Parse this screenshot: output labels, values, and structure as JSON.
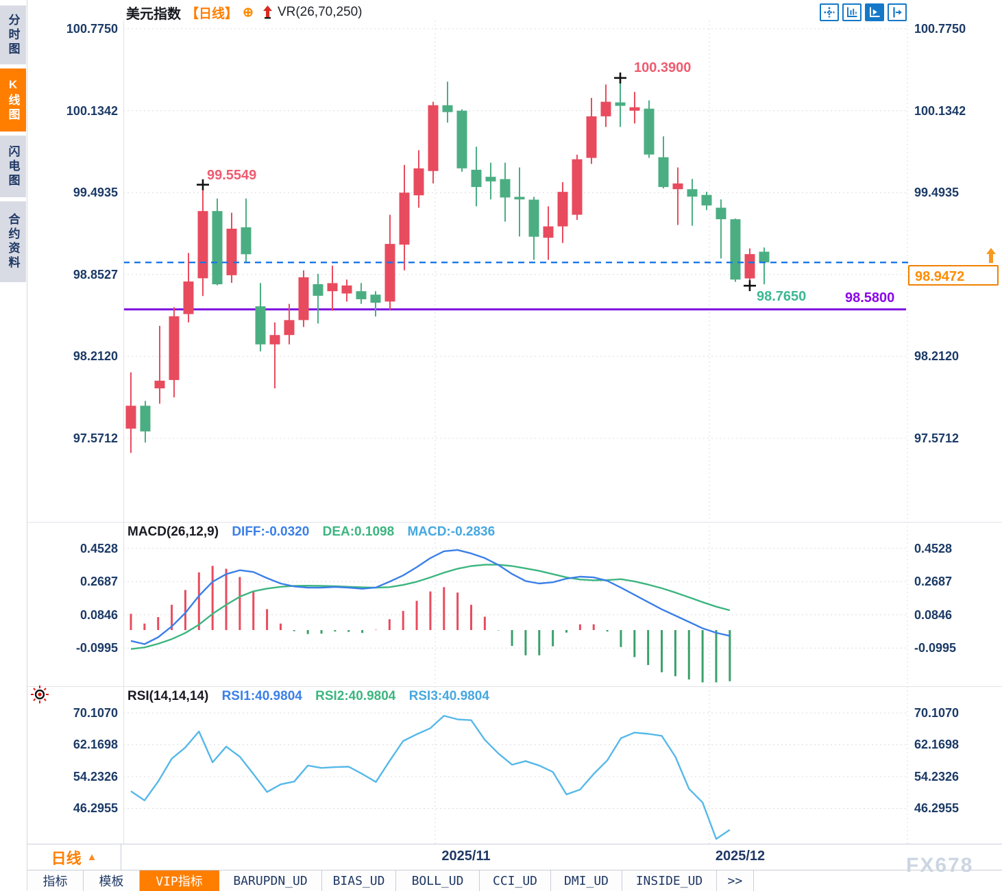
{
  "app": {
    "sidebar": [
      {
        "label": "分时图",
        "active": false
      },
      {
        "label": "K线图",
        "active": true
      },
      {
        "label": "闪电图",
        "active": false
      },
      {
        "label": "合约资料",
        "active": false
      }
    ],
    "title": {
      "symbol": "美元指数",
      "period": "【日线】",
      "oplus_icon": "⊕",
      "overlay_indicator": "VR(26,70,250)"
    },
    "toolbar_icons": [
      "move-crosshair-icon",
      "axis-scale-icon",
      "axis-play-icon",
      "pan-right-icon"
    ],
    "footer": {
      "period_button": "日线",
      "period_arrow": "▲",
      "tabs": [
        {
          "label": "指标",
          "active": false
        },
        {
          "label": "模板",
          "active": false
        },
        {
          "label": "VIP指标",
          "active": true
        },
        {
          "label": "BARUPDN_UD",
          "active": false
        },
        {
          "label": "BIAS_UD",
          "active": false
        },
        {
          "label": "BOLL_UD",
          "active": false
        },
        {
          "label": "CCI_UD",
          "active": false
        },
        {
          "label": "DMI_UD",
          "active": false
        },
        {
          "label": "INSIDE_UD",
          "active": false
        },
        {
          "label": ">>",
          "active": false
        }
      ],
      "watermark": "FX678"
    }
  },
  "indicators": {
    "macd_header": {
      "name": "MACD(26,12,9)",
      "diff": "DIFF:-0.0320",
      "dea": "DEA:0.1098",
      "macd": "MACD:-0.2836"
    },
    "rsi_header": {
      "name": "RSI(14,14,14)",
      "rsi1": "RSI1:40.9804",
      "rsi2": "RSI2:40.9804",
      "rsi3": "RSI3:40.9804"
    }
  },
  "annotations": {
    "swing_high_1": "99.5549",
    "swing_high_2": "100.3900",
    "swing_low": "98.7650",
    "support_line": "98.5800",
    "last_price": "98.9472"
  },
  "colors": {
    "up_candle": "#e84b5e",
    "down_candle": "#4bae82",
    "diff_line": "#3a7fe8",
    "dea_line": "#3cb57f",
    "rsi_line": "#55b8e8",
    "current_price_line": "#1877e8",
    "support_line": "#7c10e0",
    "accent_orange": "#ff7e00",
    "pink_label": "#ef5b70",
    "green_label": "#3cb892",
    "purple_label": "#8a06e8",
    "axis_text": "#1b3a66"
  },
  "chart_data": {
    "type": "candlestick",
    "symbol": "美元指数",
    "period": "日线",
    "price_axis_ticks": [
      100.775,
      100.1342,
      99.4935,
      98.8527,
      98.212,
      97.5712
    ],
    "candles_ohlc": [
      [
        97.647,
        98.087,
        97.457,
        97.826
      ],
      [
        97.826,
        97.864,
        97.538,
        97.625
      ],
      [
        97.962,
        98.451,
        97.842,
        98.022
      ],
      [
        98.027,
        98.597,
        97.891,
        98.526
      ],
      [
        98.543,
        99.021,
        98.478,
        98.798
      ],
      [
        98.823,
        99.5549,
        98.684,
        99.349
      ],
      [
        99.349,
        99.447,
        98.768,
        98.776
      ],
      [
        98.847,
        99.336,
        98.787,
        99.211
      ],
      [
        99.222,
        99.447,
        98.951,
        99.011
      ],
      [
        98.604,
        98.786,
        98.251,
        98.306
      ],
      [
        98.306,
        98.478,
        97.962,
        98.379
      ],
      [
        98.379,
        98.623,
        98.306,
        98.496
      ],
      [
        98.496,
        98.885,
        98.442,
        98.831
      ],
      [
        98.777,
        98.858,
        98.469,
        98.686
      ],
      [
        98.722,
        98.922,
        98.569,
        98.785
      ],
      [
        98.704,
        98.813,
        98.641,
        98.767
      ],
      [
        98.722,
        98.786,
        98.623,
        98.659
      ],
      [
        98.695,
        98.722,
        98.524,
        98.632
      ],
      [
        98.641,
        99.32,
        98.576,
        99.092
      ],
      [
        99.086,
        99.71,
        98.885,
        99.493
      ],
      [
        99.472,
        99.825,
        99.375,
        99.683
      ],
      [
        99.662,
        100.204,
        99.565,
        100.177
      ],
      [
        100.177,
        100.361,
        100.041,
        100.123
      ],
      [
        100.134,
        100.145,
        99.656,
        99.683
      ],
      [
        99.672,
        99.852,
        99.386,
        99.537
      ],
      [
        99.617,
        99.727,
        99.44,
        99.581
      ],
      [
        99.599,
        99.727,
        99.266,
        99.455
      ],
      [
        99.46,
        99.69,
        99.15,
        99.44
      ],
      [
        99.438,
        99.46,
        98.967,
        99.148
      ],
      [
        99.14,
        99.386,
        98.967,
        99.229
      ],
      [
        99.229,
        99.575,
        99.099,
        99.499
      ],
      [
        99.32,
        99.79,
        99.28,
        99.754
      ],
      [
        99.765,
        100.234,
        99.718,
        100.09
      ],
      [
        100.09,
        100.339,
        100.007,
        100.204
      ],
      [
        100.199,
        100.39,
        100.007,
        100.172
      ],
      [
        100.134,
        100.281,
        100.034,
        100.161
      ],
      [
        100.15,
        100.215,
        99.765,
        99.791
      ],
      [
        99.77,
        99.933,
        99.526,
        99.537
      ],
      [
        99.52,
        99.69,
        99.24,
        99.565
      ],
      [
        99.52,
        99.6,
        99.234,
        99.462
      ],
      [
        99.475,
        99.5,
        99.357,
        99.393
      ],
      [
        99.375,
        99.44,
        98.978,
        99.285
      ],
      [
        99.285,
        99.29,
        98.795,
        98.813
      ],
      [
        98.822,
        99.057,
        98.765,
        99.012
      ],
      [
        99.031,
        99.064,
        98.776,
        98.9472
      ]
    ],
    "current_price": 98.9472,
    "support_level": 98.58,
    "swing_high_1": 99.5549,
    "swing_high_1_index": 5,
    "swing_high_2": 100.39,
    "swing_high_2_index": 34,
    "swing_low": 98.765,
    "swing_low_index": 43,
    "macd": {
      "params": "26,12,9",
      "axis_ticks": [
        0.4528,
        0.2687,
        0.0846,
        -0.0995
      ],
      "diff": [
        -0.06,
        -0.078,
        -0.04,
        0.02,
        0.095,
        0.19,
        0.268,
        0.31,
        0.332,
        0.322,
        0.288,
        0.258,
        0.242,
        0.235,
        0.235,
        0.239,
        0.235,
        0.229,
        0.236,
        0.268,
        0.303,
        0.349,
        0.399,
        0.437,
        0.444,
        0.425,
        0.399,
        0.361,
        0.311,
        0.272,
        0.258,
        0.265,
        0.285,
        0.296,
        0.292,
        0.273,
        0.235,
        0.195,
        0.155,
        0.115,
        0.08,
        0.045,
        0.01,
        -0.015,
        -0.032
      ],
      "dea": [
        -0.105,
        -0.096,
        -0.076,
        -0.05,
        -0.016,
        0.03,
        0.09,
        0.14,
        0.185,
        0.215,
        0.23,
        0.24,
        0.245,
        0.246,
        0.245,
        0.243,
        0.24,
        0.237,
        0.235,
        0.238,
        0.25,
        0.268,
        0.292,
        0.318,
        0.34,
        0.355,
        0.362,
        0.362,
        0.355,
        0.342,
        0.328,
        0.31,
        0.292,
        0.28,
        0.276,
        0.277,
        0.282,
        0.27,
        0.252,
        0.232,
        0.208,
        0.182,
        0.155,
        0.13,
        0.1098
      ],
      "histogram_rule": "2*(diff-dea)",
      "last": {
        "diff": -0.032,
        "dea": 0.1098,
        "macd": -0.2836
      }
    },
    "rsi": {
      "params": "14,14,14",
      "axis_ticks": [
        70.107,
        62.1698,
        54.2326,
        46.2955
      ],
      "values": [
        50.6,
        48.3,
        53.0,
        58.7,
        61.5,
        65.5,
        57.8,
        61.7,
        59.2,
        54.9,
        50.4,
        52.3,
        53.0,
        57.0,
        56.4,
        56.6,
        56.7,
        54.9,
        52.9,
        58.1,
        63.1,
        64.8,
        66.3,
        69.4,
        68.5,
        68.3,
        63.4,
        60.0,
        57.2,
        58.1,
        57.0,
        55.4,
        49.8,
        51.0,
        54.9,
        58.3,
        63.8,
        65.2,
        64.9,
        64.4,
        59.2,
        51.2,
        47.8,
        38.7,
        40.9804
      ],
      "last": 40.9804
    },
    "x_axis": {
      "month_marks": [
        "2025/11",
        "2025/12"
      ]
    }
  }
}
